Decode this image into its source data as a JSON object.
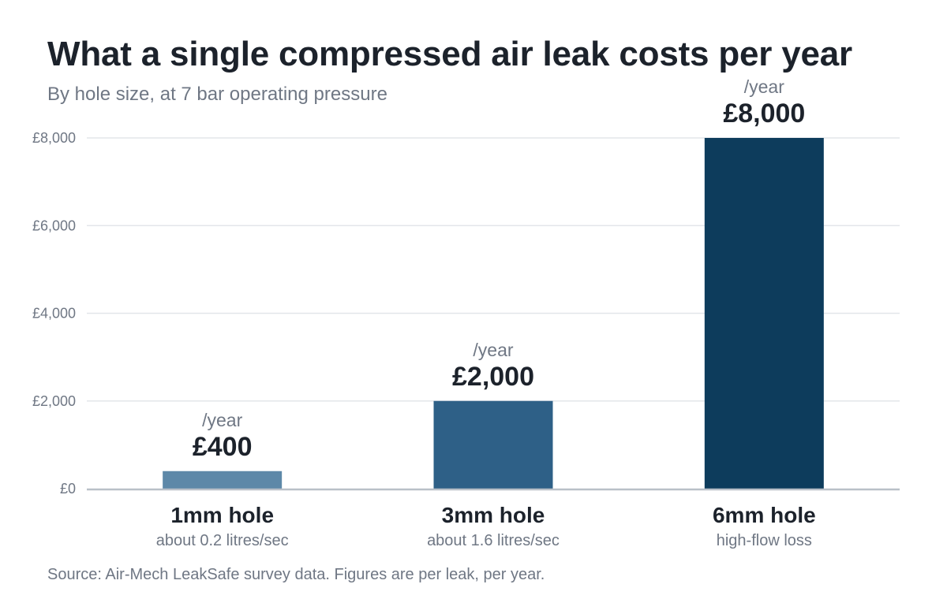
{
  "chart_data": {
    "type": "bar",
    "title": "What a single compressed air leak costs per year",
    "subtitle": "By hole size, at 7 bar operating pressure",
    "source": "Source: Air-Mech LeakSafe survey data. Figures are per leak, per year.",
    "categories": [
      "1mm hole",
      "3mm hole",
      "6mm hole"
    ],
    "category_subtitles": [
      "about 0.2 litres/sec",
      "about 1.6 litres/sec",
      "high-flow loss"
    ],
    "values": [
      400,
      2000,
      8000
    ],
    "value_labels": [
      "£400",
      "£2,000",
      "£8,000"
    ],
    "value_unit_label": "/year",
    "bar_colors": [
      "#5d88a8",
      "#2e6087",
      "#0d3c5c"
    ],
    "ylim": [
      0,
      8000
    ],
    "yticks": [
      0,
      2000,
      4000,
      6000,
      8000
    ],
    "ytick_labels": [
      "£0",
      "£2,000",
      "£4,000",
      "£6,000",
      "£8,000"
    ],
    "xlabel": "",
    "ylabel": "",
    "grid": true,
    "legend": "none"
  }
}
